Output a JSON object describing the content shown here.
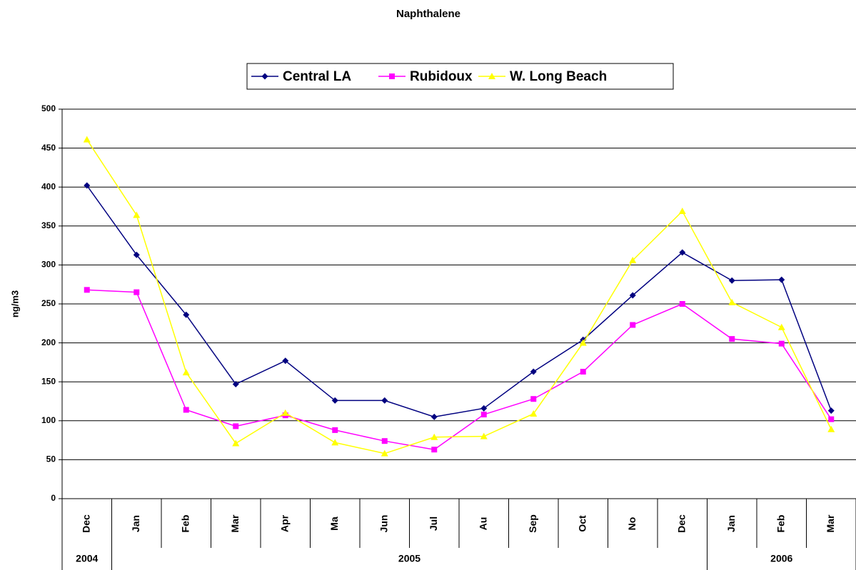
{
  "chart_data": {
    "type": "line",
    "title": "Naphthalene",
    "y_label": "ng/m3",
    "categories": [
      "Dec",
      "Jan",
      "Feb",
      "Mar",
      "Apr",
      "Ma",
      "Jun",
      "Jul",
      "Au",
      "Sep",
      "Oct",
      "No",
      "Dec",
      "Jan",
      "Feb",
      "Mar"
    ],
    "groups": [
      {
        "label": "2004",
        "size": 1
      },
      {
        "label": "2005",
        "size": 12
      },
      {
        "label": "2006",
        "size": 3
      }
    ],
    "series": [
      {
        "name": "Central LA",
        "color": "#000080",
        "marker": "diamond",
        "values": [
          402,
          313,
          236,
          147,
          177,
          126,
          126,
          105,
          116,
          163,
          204,
          261,
          316,
          280,
          281,
          113
        ]
      },
      {
        "name": "Rubidoux",
        "color": "#ff00ff",
        "marker": "square",
        "values": [
          268,
          265,
          114,
          93,
          107,
          88,
          74,
          63,
          108,
          128,
          163,
          223,
          250,
          205,
          199,
          102
        ]
      },
      {
        "name": "W. Long Beach",
        "color": "#ffff00",
        "marker": "triangle",
        "values": [
          461,
          364,
          162,
          71,
          110,
          72,
          58,
          79,
          80,
          109,
          200,
          306,
          369,
          252,
          220,
          89
        ]
      }
    ],
    "ylim": [
      0,
      500
    ],
    "yticks": [
      0,
      50,
      100,
      150,
      200,
      250,
      300,
      350,
      400,
      450,
      500
    ],
    "grid": true,
    "legend": "top"
  }
}
